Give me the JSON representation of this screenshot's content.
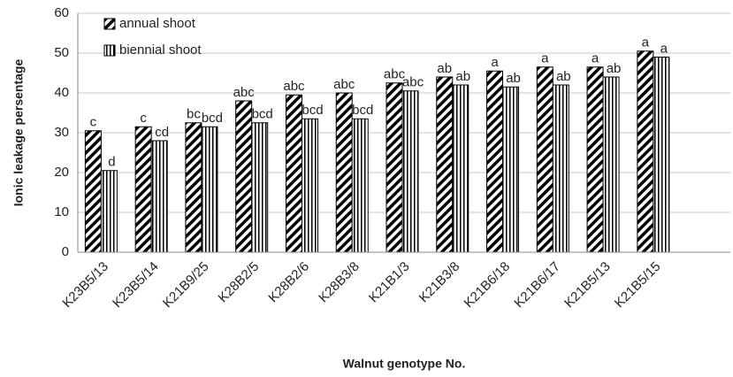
{
  "chart_data": {
    "type": "bar",
    "y_label": "Ionic leakage persentage",
    "x_label": "Walnut genotype No.",
    "categories": [
      "K23B5/13",
      "K23B5/14",
      "K21B9/25",
      "K28B2/5",
      "K28B2/6",
      "K28B3/8",
      "K21B1/3",
      "K21B3/8",
      "K21B6/18",
      "K21B6/17",
      "K21B5/13",
      "K21B5/15",
      null
    ],
    "series": [
      {
        "name": "annual shoot",
        "color": "#000000",
        "hatch": "diagonal",
        "values": [
          30.5,
          31.5,
          32.5,
          38,
          39.5,
          40,
          42.5,
          44,
          45.5,
          46.5,
          46.5,
          50.5,
          null
        ],
        "letters": [
          "c",
          "c",
          "bc",
          "abc",
          "abc",
          "abc",
          "abc",
          "ab",
          "a",
          "a",
          "a",
          "a",
          null
        ]
      },
      {
        "name": "biennial shoot",
        "color": "#000000",
        "hatch": "vertical",
        "values": [
          20.5,
          28,
          31.5,
          32.5,
          33.5,
          33.5,
          40.5,
          42,
          41.5,
          42,
          44,
          49,
          null
        ],
        "letters": [
          "d",
          "cd",
          "bcd",
          "bcd",
          "bcd",
          "bcd",
          "abc",
          "ab",
          "ab",
          "ab",
          "ab",
          "a",
          null
        ]
      }
    ],
    "ylim": [
      0,
      60
    ],
    "yticks": [
      0,
      10,
      20,
      30,
      40,
      50,
      60
    ],
    "grid": true,
    "legend": "top-left"
  }
}
